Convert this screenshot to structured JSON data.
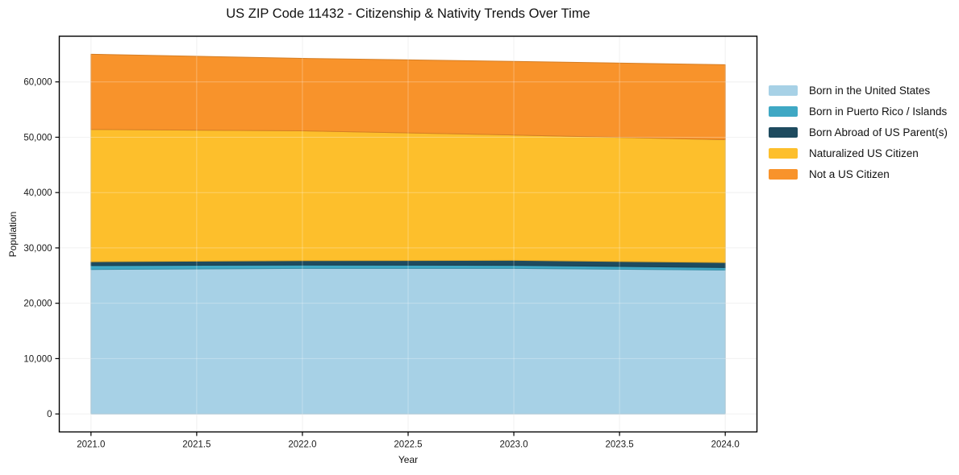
{
  "chart_data": {
    "type": "area",
    "stacked": true,
    "title": "US ZIP Code 11432 - Citizenship & Nativity Trends Over Time",
    "xlabel": "Year",
    "ylabel": "Population",
    "x": [
      2021,
      2022,
      2023,
      2024
    ],
    "series": [
      {
        "name": "Born in the United States",
        "color": "#a7d1e6",
        "values": [
          26100,
          26300,
          26300,
          26000
        ]
      },
      {
        "name": "Born in Puerto Rico / Islands",
        "color": "#3fa8c4",
        "values": [
          700,
          600,
          550,
          450
        ]
      },
      {
        "name": "Born Abroad of US Parent(s)",
        "color": "#1e4b5f",
        "values": [
          700,
          800,
          900,
          900
        ]
      },
      {
        "name": "Naturalized US Citizen",
        "color": "#fdbf2c",
        "values": [
          23900,
          23450,
          22650,
          22200
        ]
      },
      {
        "name": "Not a US Citizen",
        "color": "#f8932b",
        "values": [
          13600,
          13100,
          13300,
          13550
        ]
      }
    ],
    "stack_totals": [
      65000,
      64250,
      63700,
      63100
    ],
    "xlim": [
      2020.85,
      2024.15
    ],
    "ylim": [
      -3250,
      68250
    ],
    "xticks": {
      "values": [
        2021,
        2021.5,
        2022,
        2022.5,
        2023,
        2023.5,
        2024
      ],
      "labels": [
        "2021.0",
        "2021.5",
        "2022.0",
        "2022.5",
        "2023.0",
        "2023.5",
        "2024.0"
      ]
    },
    "yticks": {
      "values": [
        0,
        10000,
        20000,
        30000,
        40000,
        50000,
        60000
      ],
      "labels": [
        "0",
        "10,000",
        "20,000",
        "30,000",
        "40,000",
        "50,000",
        "60,000"
      ]
    },
    "grid": true,
    "grid_color": "#ececec",
    "legend_position": "right-outside",
    "spine_color": "#000000"
  }
}
